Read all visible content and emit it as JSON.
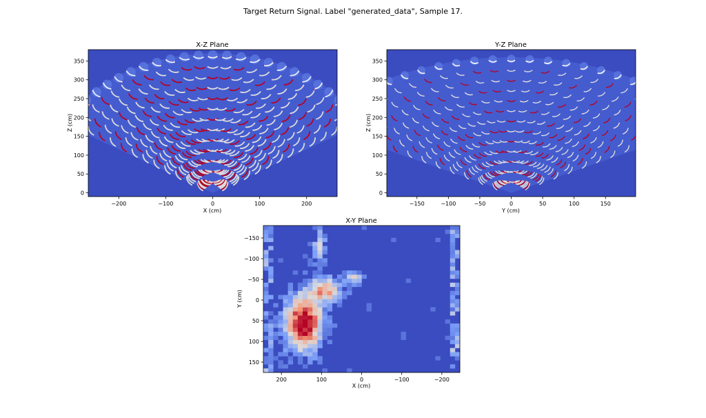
{
  "figure": {
    "suptitle": "Target Return Signal. Label \"generated_data\", Sample 17."
  },
  "colors": {
    "background": "#3b4cc0",
    "background_light": "#4a62d4",
    "hot": "#b40426",
    "mid": "#dddcdc",
    "cool": "#6f92f3"
  },
  "chart_data": [
    {
      "type": "heatmap",
      "title": "X-Z Plane",
      "xlabel": "X (cm)",
      "ylabel": "Z (cm)",
      "xlim": [
        -265,
        265
      ],
      "ylim": [
        -10,
        380
      ],
      "xticks": [
        -200,
        -100,
        0,
        100,
        200
      ],
      "xtick_labels": [
        "−200",
        "−100",
        "0",
        "100",
        "200"
      ],
      "yticks": [
        0,
        50,
        100,
        150,
        200,
        250,
        300,
        350
      ],
      "ytick_labels": [
        "0",
        "50",
        "100",
        "150",
        "200",
        "250",
        "300",
        "350"
      ],
      "fan": {
        "half_angle_deg": 60,
        "max_range": 370,
        "rings": 13,
        "beams": 25
      },
      "colormap": "coolwarm",
      "grid": false
    },
    {
      "type": "heatmap",
      "title": "Y-Z Plane",
      "xlabel": "Y (cm)",
      "ylabel": "Z (cm)",
      "xlim": [
        -198,
        198
      ],
      "ylim": [
        -10,
        380
      ],
      "xticks": [
        -150,
        -100,
        -50,
        0,
        50,
        100,
        150
      ],
      "xtick_labels": [
        "−150",
        "−100",
        "−50",
        "0",
        "50",
        "100",
        "150"
      ],
      "yticks": [
        0,
        50,
        100,
        150,
        200,
        250,
        300,
        350
      ],
      "ytick_labels": [
        "0",
        "50",
        "100",
        "150",
        "200",
        "250",
        "300",
        "350"
      ],
      "fan": {
        "half_angle_deg": 60,
        "max_range": 360,
        "rings": 13,
        "beams": 25
      },
      "colormap": "coolwarm",
      "grid": false
    },
    {
      "type": "heatmap",
      "title": "X-Y Plane",
      "xlabel": "X (cm)",
      "ylabel": "Y (cm)",
      "xlim": [
        245,
        -245
      ],
      "ylim": [
        175,
        -180
      ],
      "xticks": [
        200,
        100,
        0,
        -100,
        -200
      ],
      "xtick_labels": [
        "200",
        "100",
        "0",
        "−100",
        "−200"
      ],
      "yticks": [
        -150,
        -100,
        -50,
        0,
        50,
        100,
        150
      ],
      "ytick_labels": [
        "−150",
        "−100",
        "−50",
        "0",
        "50",
        "100",
        "150"
      ],
      "colormap": "coolwarm",
      "grid": false,
      "hot_region": {
        "x_center": 130,
        "y_center": 40,
        "description_values": "peak near X 130-170 cm, Y 0-120 cm"
      }
    }
  ]
}
